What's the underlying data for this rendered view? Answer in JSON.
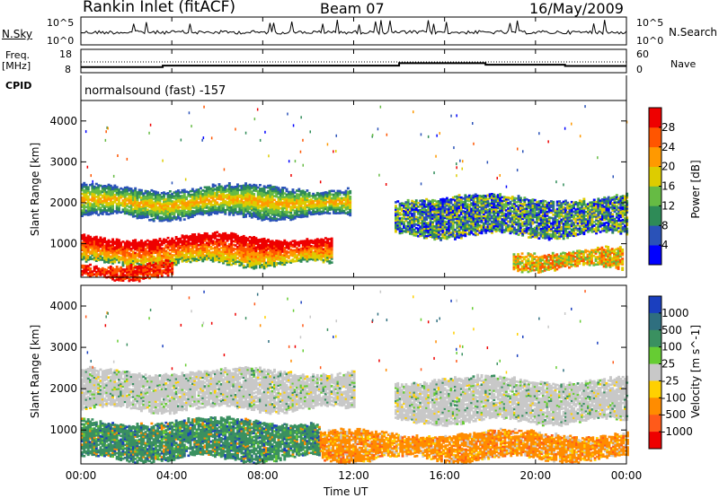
{
  "header": {
    "site": "Rankin Inlet (fitACF)",
    "beam": "Beam 07",
    "date": "16/May/2009"
  },
  "nsky_panel": {
    "left_label": "N.Sky",
    "right_label": "N.Search",
    "ticks_left": [
      "10^5",
      "10^0"
    ],
    "ticks_right": [
      "10^5",
      "10^0"
    ]
  },
  "freq_panel": {
    "left_label_line1": "Freq.",
    "left_label_line2": "[MHz]",
    "right_label": "Nave",
    "ticks_left": [
      "18",
      "8"
    ],
    "ticks_right": [
      "60",
      "0"
    ]
  },
  "cpid": {
    "label": "CPID",
    "value": "normalsound (fast) -157"
  },
  "x_axis": {
    "label": "Time UT",
    "ticks": [
      "00:00",
      "04:00",
      "08:00",
      "12:00",
      "16:00",
      "20:00",
      "00:00"
    ]
  },
  "power_panel": {
    "ylabel": "Slant Range [km]",
    "yticks": [
      "1000",
      "2000",
      "3000",
      "4000"
    ],
    "colorbar_label": "Power [dB]",
    "colorbar_ticks": [
      "4",
      "8",
      "12",
      "16",
      "20",
      "24",
      "28"
    ],
    "colors": [
      "#0000ff",
      "#2a52b8",
      "#2e8b57",
      "#66bb44",
      "#ddcc00",
      "#ff9900",
      "#ff5500",
      "#ee0000"
    ]
  },
  "velocity_panel": {
    "ylabel": "Slant Range [km]",
    "yticks": [
      "1000",
      "2000",
      "3000",
      "4000"
    ],
    "colorbar_label": "Velocity [m s^-1]",
    "colorbar_ticks": [
      "1000",
      "500",
      "100",
      "25",
      "-25",
      "-100",
      "-500",
      "-1000"
    ],
    "colors": [
      "#1a3fbf",
      "#2f6f7f",
      "#3a9060",
      "#66cc33",
      "#c8c8c8",
      "#ffd000",
      "#ff8c00",
      "#ff5a1a",
      "#ee0000"
    ]
  },
  "chart_data": {
    "type": "heatmap",
    "x_range_hours": [
      0,
      24
    ],
    "y_range_km": [
      180,
      4500
    ],
    "power_bands": [
      {
        "description_ranges": "band",
        "t_start": 0.0,
        "t_end": 11.8,
        "r_low": 1650,
        "r_high": 2350,
        "level": "16-20"
      },
      {
        "t_start": 0.0,
        "t_end": 11.0,
        "r_low": 500,
        "r_high": 1150,
        "level": "20-28"
      },
      {
        "t_start": 0.0,
        "t_end": 4.0,
        "r_low": 180,
        "r_high": 500,
        "level": "24-28"
      },
      {
        "t_start": 13.8,
        "t_end": 24.0,
        "r_low": 1200,
        "r_high": 2100,
        "level": "8-16"
      },
      {
        "t_start": 19.0,
        "t_end": 23.8,
        "r_low": 400,
        "r_high": 800,
        "level": "16-24"
      }
    ],
    "velocity_bands": [
      {
        "t_start": 0.0,
        "t_end": 12.0,
        "r_low": 1500,
        "r_high": 2400,
        "level": "-25 to 25"
      },
      {
        "t_start": 0.0,
        "t_end": 10.5,
        "r_low": 300,
        "r_high": 1200,
        "level": "100 to 500"
      },
      {
        "t_start": 10.5,
        "t_end": 24.0,
        "r_low": 300,
        "r_high": 900,
        "level": "-100 to -500"
      },
      {
        "t_start": 13.8,
        "t_end": 24.0,
        "r_low": 1200,
        "r_high": 2200,
        "level": "-25 to 25"
      }
    ],
    "freq_mhz_segments": [
      {
        "t_start": 0.0,
        "t_end": 3.6,
        "value": 10.3
      },
      {
        "t_start": 3.6,
        "t_end": 14.0,
        "value": 11.0
      },
      {
        "t_start": 14.0,
        "t_end": 17.8,
        "value": 12.2
      },
      {
        "t_start": 17.8,
        "t_end": 21.3,
        "value": 11.4
      },
      {
        "t_start": 21.3,
        "t_end": 24.0,
        "value": 10.8
      }
    ]
  }
}
